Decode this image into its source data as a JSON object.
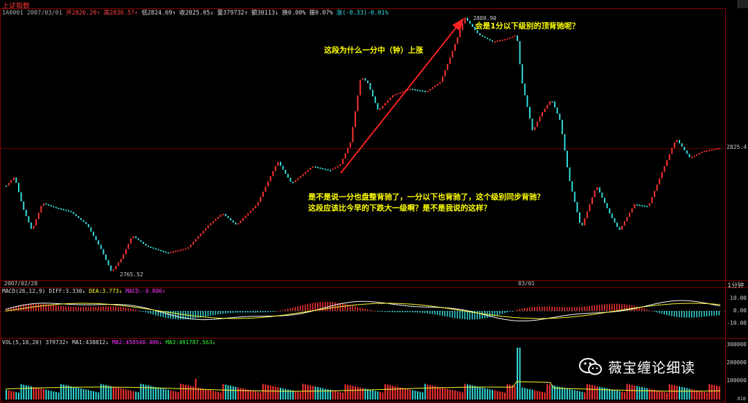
{
  "title": "上证指数",
  "quote": {
    "code": "1A0001",
    "date": "2007/03/01",
    "open": "开2826.20↑",
    "high": "高2836.57↑",
    "low": "低2824.69↑",
    "close": "收2825.05↓",
    "volume": "量379732↑",
    "amount": "额30113↓",
    "turnover": "换0.00%",
    "amplitude": "振0.07%",
    "change": "涨(-0.33)-0.01%"
  },
  "price_chart": {
    "high_label": "2888.90",
    "low_label": "2765.52",
    "current_price_label": "2825.4",
    "date_left": "2007/02/28",
    "date_mid": "03/01",
    "period": "1分钟"
  },
  "annotations": {
    "top_right": "会是1分以下级别的顶背驰呢？",
    "rise_question": "这段为什么一分中（钟）上涨",
    "bottom_line1": "是不是说一分也盘整背驰了，一分以下也背驰了，这个级别同步背驰？",
    "bottom_line2": "这段应该比今早的下跌大一级啊？是不是我说的这样？"
  },
  "macd": {
    "params": "MACD(26,12,9)",
    "diff": "DIFF:3.330↓",
    "dea": "DEA:3.773↓",
    "macd": "MACD:-0.886↑",
    "ticks": [
      "10.00",
      "0.00",
      "-10.00"
    ]
  },
  "volume": {
    "params": "VOL(5,10,20)",
    "value": "379732↑",
    "ma1": "MA1:438812↓",
    "ma2": "MA2:450540.406↓",
    "ma3": "MA3:491787.563↓",
    "ticks": [
      "300000",
      "200000",
      "100000"
    ],
    "unit": "X10"
  },
  "watermark": "薇宝缠论细读",
  "colors": {
    "up": "#ff3333",
    "down": "#33dddd",
    "grid": "#8b0000",
    "annotation": "#ffff00",
    "arrow": "#ff2222"
  }
}
